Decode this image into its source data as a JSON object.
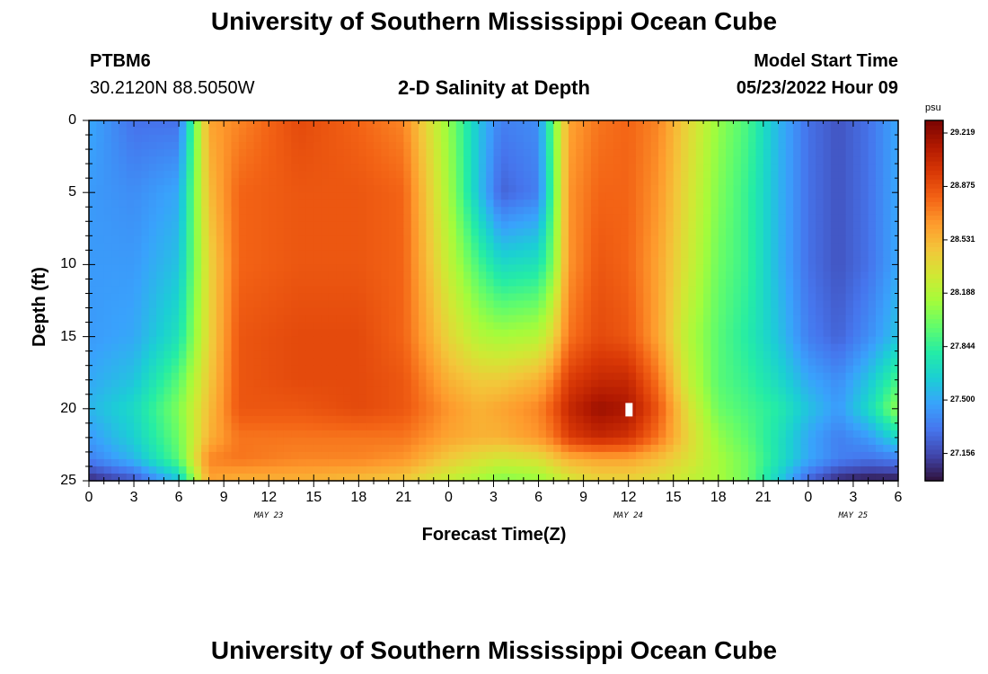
{
  "header": {
    "title": "University of Southern Mississippi Ocean Cube",
    "station_id": "PTBM6",
    "station_coords": "30.2120N  88.5050W",
    "subtitle": "2-D Salinity at Depth",
    "model_start_label": "Model Start Time",
    "model_start_value": "05/23/2022 Hour 09",
    "footer_title": "University of Southern Mississippi Ocean Cube"
  },
  "colors": {
    "palette": [
      "#30123b",
      "#4145ab",
      "#4675ed",
      "#39a2fc",
      "#1bcfd4",
      "#24eca6",
      "#61fc6c",
      "#a4fc3b",
      "#d1e834",
      "#f3c63a",
      "#fe9b2d",
      "#f36315",
      "#d93806",
      "#b11901",
      "#7a0402"
    ]
  },
  "chart_data": {
    "type": "heatmap",
    "title": "2-D Salinity at Depth",
    "xlabel": "Forecast Time(Z)",
    "ylabel": "Depth (ft)",
    "x_unit": "hours since 05/23/2022 00Z",
    "xlim": [
      0,
      54
    ],
    "ylim": [
      0,
      25
    ],
    "y_inverted": true,
    "x_ticks": [
      {
        "value": 0,
        "label": "0"
      },
      {
        "value": 3,
        "label": "3"
      },
      {
        "value": 6,
        "label": "6"
      },
      {
        "value": 9,
        "label": "9"
      },
      {
        "value": 12,
        "label": "12"
      },
      {
        "value": 15,
        "label": "15"
      },
      {
        "value": 18,
        "label": "18"
      },
      {
        "value": 21,
        "label": "21"
      },
      {
        "value": 24,
        "label": "0"
      },
      {
        "value": 27,
        "label": "3"
      },
      {
        "value": 30,
        "label": "6"
      },
      {
        "value": 33,
        "label": "9"
      },
      {
        "value": 36,
        "label": "12"
      },
      {
        "value": 39,
        "label": "15"
      },
      {
        "value": 42,
        "label": "18"
      },
      {
        "value": 45,
        "label": "21"
      },
      {
        "value": 48,
        "label": "0"
      },
      {
        "value": 51,
        "label": "3"
      },
      {
        "value": 54,
        "label": "6"
      }
    ],
    "y_ticks": [
      0,
      5,
      10,
      15,
      20,
      25
    ],
    "date_labels": [
      {
        "value": 12,
        "label": "MAY 23"
      },
      {
        "value": 36,
        "label": "MAY 24"
      },
      {
        "value": 51,
        "label": "MAY 25"
      }
    ],
    "colorbar": {
      "unit": "psu",
      "min": 26.98,
      "max": 29.3,
      "ticks": [
        "29.219",
        "28.875",
        "28.531",
        "28.188",
        "27.844",
        "27.500",
        "27.156"
      ]
    },
    "grid": {
      "x": [
        0,
        3,
        6,
        8,
        10,
        14,
        18,
        21,
        24,
        26,
        27.5,
        30,
        31,
        32,
        34,
        36,
        38,
        40,
        42,
        44,
        46,
        48,
        50,
        52,
        54
      ],
      "y": [
        0,
        5,
        10,
        15,
        18,
        20,
        22,
        23.5,
        25
      ],
      "values": [
        [
          27.5,
          27.3,
          27.3,
          28.6,
          28.7,
          28.9,
          28.8,
          28.7,
          28.1,
          27.6,
          27.35,
          27.4,
          28.0,
          28.6,
          28.75,
          28.8,
          28.7,
          28.4,
          28.1,
          27.9,
          27.55,
          27.3,
          27.2,
          27.3,
          27.5
        ],
        [
          27.45,
          27.4,
          27.5,
          28.5,
          28.8,
          28.85,
          28.85,
          28.8,
          28.15,
          27.6,
          27.25,
          27.35,
          27.95,
          28.65,
          28.8,
          28.8,
          28.65,
          28.35,
          28.05,
          27.85,
          27.55,
          27.3,
          27.2,
          27.3,
          27.5
        ],
        [
          27.45,
          27.45,
          27.6,
          28.4,
          28.8,
          28.85,
          28.85,
          28.8,
          28.25,
          27.9,
          27.7,
          27.75,
          28.05,
          28.65,
          28.85,
          28.8,
          28.6,
          28.3,
          28.0,
          27.85,
          27.55,
          27.3,
          27.2,
          27.3,
          27.5
        ],
        [
          27.45,
          27.5,
          27.75,
          28.4,
          28.85,
          28.9,
          28.9,
          28.8,
          28.4,
          28.2,
          28.15,
          28.2,
          28.4,
          28.75,
          28.9,
          28.85,
          28.6,
          28.2,
          27.95,
          27.8,
          27.6,
          27.35,
          27.25,
          27.4,
          27.6
        ],
        [
          27.5,
          27.6,
          27.95,
          28.45,
          28.85,
          28.9,
          28.9,
          28.85,
          28.55,
          28.45,
          28.45,
          28.55,
          28.7,
          28.95,
          29.05,
          29.05,
          28.75,
          28.25,
          27.95,
          27.85,
          27.7,
          27.5,
          27.4,
          27.6,
          27.9
        ],
        [
          27.55,
          27.7,
          28.05,
          28.5,
          28.85,
          28.85,
          28.9,
          28.85,
          28.65,
          28.55,
          28.6,
          28.7,
          28.85,
          29.05,
          29.2,
          29.15,
          28.85,
          28.35,
          28.0,
          27.9,
          27.8,
          27.6,
          27.45,
          27.7,
          28.1
        ],
        [
          27.45,
          27.65,
          28.0,
          28.55,
          28.75,
          28.75,
          28.75,
          28.75,
          28.6,
          28.55,
          28.55,
          28.65,
          28.75,
          28.95,
          29.05,
          29.0,
          28.75,
          28.4,
          28.1,
          27.95,
          27.75,
          27.5,
          27.35,
          27.45,
          27.7
        ],
        [
          27.35,
          27.55,
          27.95,
          28.7,
          28.75,
          28.7,
          28.7,
          28.65,
          28.45,
          28.35,
          28.3,
          28.35,
          28.45,
          28.55,
          28.6,
          28.6,
          28.5,
          28.35,
          28.15,
          28.0,
          27.75,
          27.5,
          27.35,
          27.3,
          27.35
        ],
        [
          27.05,
          27.2,
          27.6,
          28.6,
          28.55,
          28.55,
          28.5,
          28.45,
          28.25,
          28.15,
          28.05,
          28.1,
          28.2,
          28.3,
          28.4,
          28.4,
          28.35,
          28.25,
          28.15,
          28.0,
          27.65,
          27.25,
          27.05,
          27.0,
          27.0
        ]
      ]
    }
  }
}
